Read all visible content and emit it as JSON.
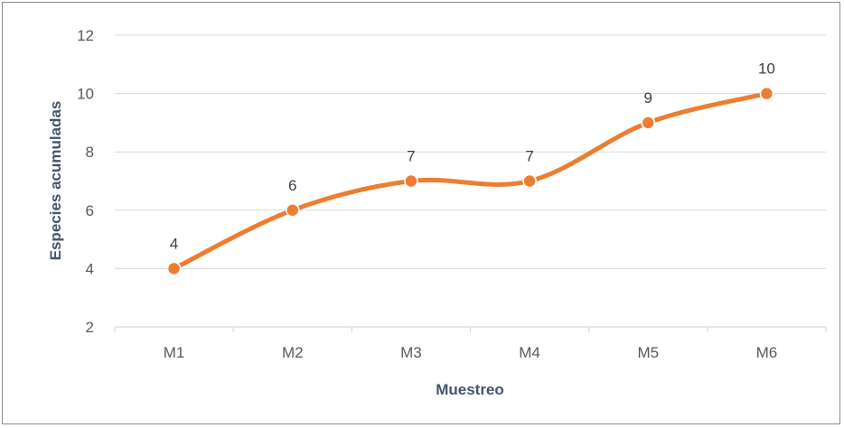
{
  "chart_data": {
    "type": "line",
    "title": "",
    "xlabel": "Muestreo",
    "ylabel": "Especies acumuladas",
    "categories": [
      "M1",
      "M2",
      "M3",
      "M4",
      "M5",
      "M6"
    ],
    "values": [
      4,
      6,
      7,
      7,
      9,
      10
    ],
    "data_labels": [
      "4",
      "6",
      "7",
      "7",
      "9",
      "10"
    ],
    "ylim": [
      2,
      12
    ],
    "yticks": [
      2,
      4,
      6,
      8,
      10,
      12
    ],
    "ytick_labels": [
      "2",
      "4",
      "6",
      "8",
      "10",
      "12"
    ],
    "grid": true,
    "smooth": true,
    "legend": "none",
    "line_color": "#ed7d31",
    "marker_stroke": "#ffffff",
    "grid_color": "#d9d9d9"
  }
}
